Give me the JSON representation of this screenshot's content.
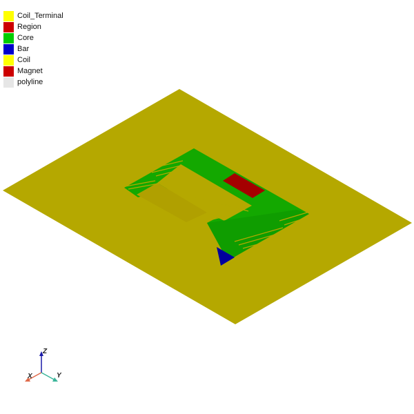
{
  "legend": {
    "items": [
      {
        "label": "Coil_Terminal",
        "color": "#ffff00"
      },
      {
        "label": "Region",
        "color": "#cc0000"
      },
      {
        "label": "Core",
        "color": "#00cc00"
      },
      {
        "label": "Bar",
        "color": "#0000cc"
      },
      {
        "label": "Coil",
        "color": "#ffff00"
      },
      {
        "label": "Magnet",
        "color": "#cc0000"
      },
      {
        "label": "polyline",
        "color": "#e6e6e6"
      }
    ]
  },
  "scene": {
    "region_color": "#b5a800",
    "core_color": "#13a800",
    "magnet_color": "#a50000",
    "bar_color": "#00009e"
  },
  "triad": {
    "x_label": "X",
    "y_label": "Y",
    "z_label": "Z",
    "x_color": "#e06a4a",
    "y_color": "#3ab59a",
    "z_color": "#1a1aa8"
  }
}
